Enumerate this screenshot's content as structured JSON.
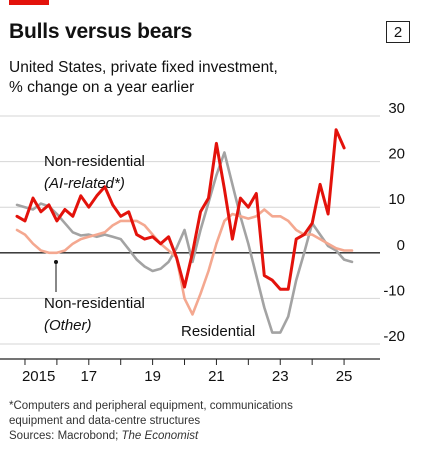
{
  "header": {
    "title": "Bulls versus bears",
    "badge": "2",
    "subtitle_line1": "United States, private fixed investment,",
    "subtitle_line2": "% change on a year earlier"
  },
  "footnote": {
    "line1": "*Computers and peripheral equipment, communications",
    "line2": "equipment and data-centre structures",
    "sources_prefix": "Sources: Macrobond; ",
    "sources_italic": "The Economist"
  },
  "colors": {
    "ai": "#e3120b",
    "other": "#f4a890",
    "residential": "#a3a3a3",
    "accent": "#e3120b"
  },
  "chart_data": {
    "type": "line",
    "x_axis": {
      "min": 2014.75,
      "max": 2025.75,
      "ticks": [
        2015,
        2017,
        2019,
        2021,
        2023,
        2025
      ],
      "tick_labels": [
        "2015",
        "17",
        "19",
        "21",
        "23",
        "25"
      ]
    },
    "y_axis": {
      "min": -20,
      "max": 30,
      "ticks": [
        30,
        20,
        10,
        0,
        -10,
        -20
      ],
      "tick_labels": [
        "30",
        "20",
        "10",
        "0",
        "-10",
        "-20"
      ],
      "position": "right"
    },
    "grid": true,
    "series": [
      {
        "name": "Residential",
        "key": "residential",
        "points": [
          [
            2014.75,
            10.5
          ],
          [
            2015.0,
            10.0
          ],
          [
            2015.25,
            9.5
          ],
          [
            2015.5,
            10.8
          ],
          [
            2015.75,
            10.2
          ],
          [
            2016.0,
            8.5
          ],
          [
            2016.25,
            6.5
          ],
          [
            2016.5,
            4.5
          ],
          [
            2016.75,
            3.8
          ],
          [
            2017.0,
            4.0
          ],
          [
            2017.25,
            3.5
          ],
          [
            2017.5,
            4.0
          ],
          [
            2017.75,
            3.5
          ],
          [
            2018.0,
            3.0
          ],
          [
            2018.25,
            0.8
          ],
          [
            2018.5,
            -1.5
          ],
          [
            2018.75,
            -3.0
          ],
          [
            2019.0,
            -4.0
          ],
          [
            2019.25,
            -3.5
          ],
          [
            2019.5,
            -2.0
          ],
          [
            2019.75,
            1.0
          ],
          [
            2020.0,
            5.0
          ],
          [
            2020.25,
            -2.0
          ],
          [
            2020.5,
            5.0
          ],
          [
            2020.75,
            11.0
          ],
          [
            2021.0,
            17.0
          ],
          [
            2021.25,
            22.0
          ],
          [
            2021.5,
            15.0
          ],
          [
            2021.75,
            8.0
          ],
          [
            2022.0,
            2.0
          ],
          [
            2022.25,
            -5.0
          ],
          [
            2022.5,
            -12.0
          ],
          [
            2022.75,
            -17.5
          ],
          [
            2023.0,
            -17.5
          ],
          [
            2023.25,
            -14.0
          ],
          [
            2023.5,
            -6.0
          ],
          [
            2023.75,
            0.0
          ],
          [
            2024.0,
            6.5
          ],
          [
            2024.25,
            4.0
          ],
          [
            2024.5,
            1.5
          ],
          [
            2024.75,
            0.5
          ],
          [
            2025.0,
            -1.5
          ],
          [
            2025.25,
            -2.0
          ]
        ]
      },
      {
        "name": "Non-residential (Other)",
        "key": "other",
        "points": [
          [
            2014.75,
            5.0
          ],
          [
            2015.0,
            4.0
          ],
          [
            2015.25,
            2.0
          ],
          [
            2015.5,
            0.5
          ],
          [
            2015.75,
            0.0
          ],
          [
            2016.0,
            0.0
          ],
          [
            2016.25,
            0.5
          ],
          [
            2016.5,
            2.0
          ],
          [
            2016.75,
            3.0
          ],
          [
            2017.0,
            3.5
          ],
          [
            2017.25,
            4.0
          ],
          [
            2017.5,
            4.5
          ],
          [
            2017.75,
            6.0
          ],
          [
            2018.0,
            7.0
          ],
          [
            2018.25,
            7.0
          ],
          [
            2018.5,
            7.0
          ],
          [
            2018.75,
            6.0
          ],
          [
            2019.0,
            4.0
          ],
          [
            2019.25,
            2.0
          ],
          [
            2019.5,
            0.5
          ],
          [
            2019.75,
            -1.0
          ],
          [
            2020.0,
            -10.0
          ],
          [
            2020.25,
            -13.5
          ],
          [
            2020.5,
            -9.0
          ],
          [
            2020.75,
            -4.0
          ],
          [
            2021.0,
            2.0
          ],
          [
            2021.25,
            7.0
          ],
          [
            2021.5,
            8.5
          ],
          [
            2021.75,
            8.0
          ],
          [
            2022.0,
            7.5
          ],
          [
            2022.25,
            8.0
          ],
          [
            2022.5,
            9.5
          ],
          [
            2022.75,
            8.0
          ],
          [
            2023.0,
            8.0
          ],
          [
            2023.25,
            7.0
          ],
          [
            2023.5,
            5.0
          ],
          [
            2023.75,
            4.0
          ],
          [
            2024.0,
            4.0
          ],
          [
            2024.25,
            3.0
          ],
          [
            2024.5,
            2.0
          ],
          [
            2024.75,
            1.0
          ],
          [
            2025.0,
            0.5
          ],
          [
            2025.25,
            0.5
          ]
        ]
      },
      {
        "name": "Non-residential (AI-related*)",
        "key": "ai",
        "points": [
          [
            2014.75,
            8.0
          ],
          [
            2015.0,
            7.0
          ],
          [
            2015.25,
            12.0
          ],
          [
            2015.5,
            9.0
          ],
          [
            2015.75,
            10.5
          ],
          [
            2016.0,
            7.0
          ],
          [
            2016.25,
            9.5
          ],
          [
            2016.5,
            8.0
          ],
          [
            2016.75,
            12.5
          ],
          [
            2017.0,
            10.0
          ],
          [
            2017.25,
            12.5
          ],
          [
            2017.5,
            14.5
          ],
          [
            2017.75,
            10.5
          ],
          [
            2018.0,
            8.0
          ],
          [
            2018.25,
            9.0
          ],
          [
            2018.5,
            4.0
          ],
          [
            2018.75,
            3.0
          ],
          [
            2019.0,
            3.5
          ],
          [
            2019.25,
            2.0
          ],
          [
            2019.5,
            3.5
          ],
          [
            2019.75,
            -1.0
          ],
          [
            2020.0,
            -7.5
          ],
          [
            2020.25,
            0.0
          ],
          [
            2020.5,
            9.0
          ],
          [
            2020.75,
            12.0
          ],
          [
            2021.0,
            24.0
          ],
          [
            2021.25,
            14.0
          ],
          [
            2021.5,
            3.0
          ],
          [
            2021.75,
            12.0
          ],
          [
            2022.0,
            10.0
          ],
          [
            2022.25,
            13.0
          ],
          [
            2022.5,
            -5.0
          ],
          [
            2022.75,
            -6.0
          ],
          [
            2023.0,
            -8.0
          ],
          [
            2023.25,
            -8.0
          ],
          [
            2023.5,
            3.0
          ],
          [
            2023.75,
            4.0
          ],
          [
            2024.0,
            6.5
          ],
          [
            2024.25,
            15.0
          ],
          [
            2024.5,
            8.5
          ],
          [
            2024.75,
            27.0
          ],
          [
            2025.0,
            23.0
          ]
        ]
      }
    ],
    "annotations": {
      "ai_line1": "Non-residential",
      "ai_line2": "(AI-related*)",
      "other_line1": "Non-residential",
      "other_line2": "(Other)",
      "residential": "Residential"
    }
  }
}
